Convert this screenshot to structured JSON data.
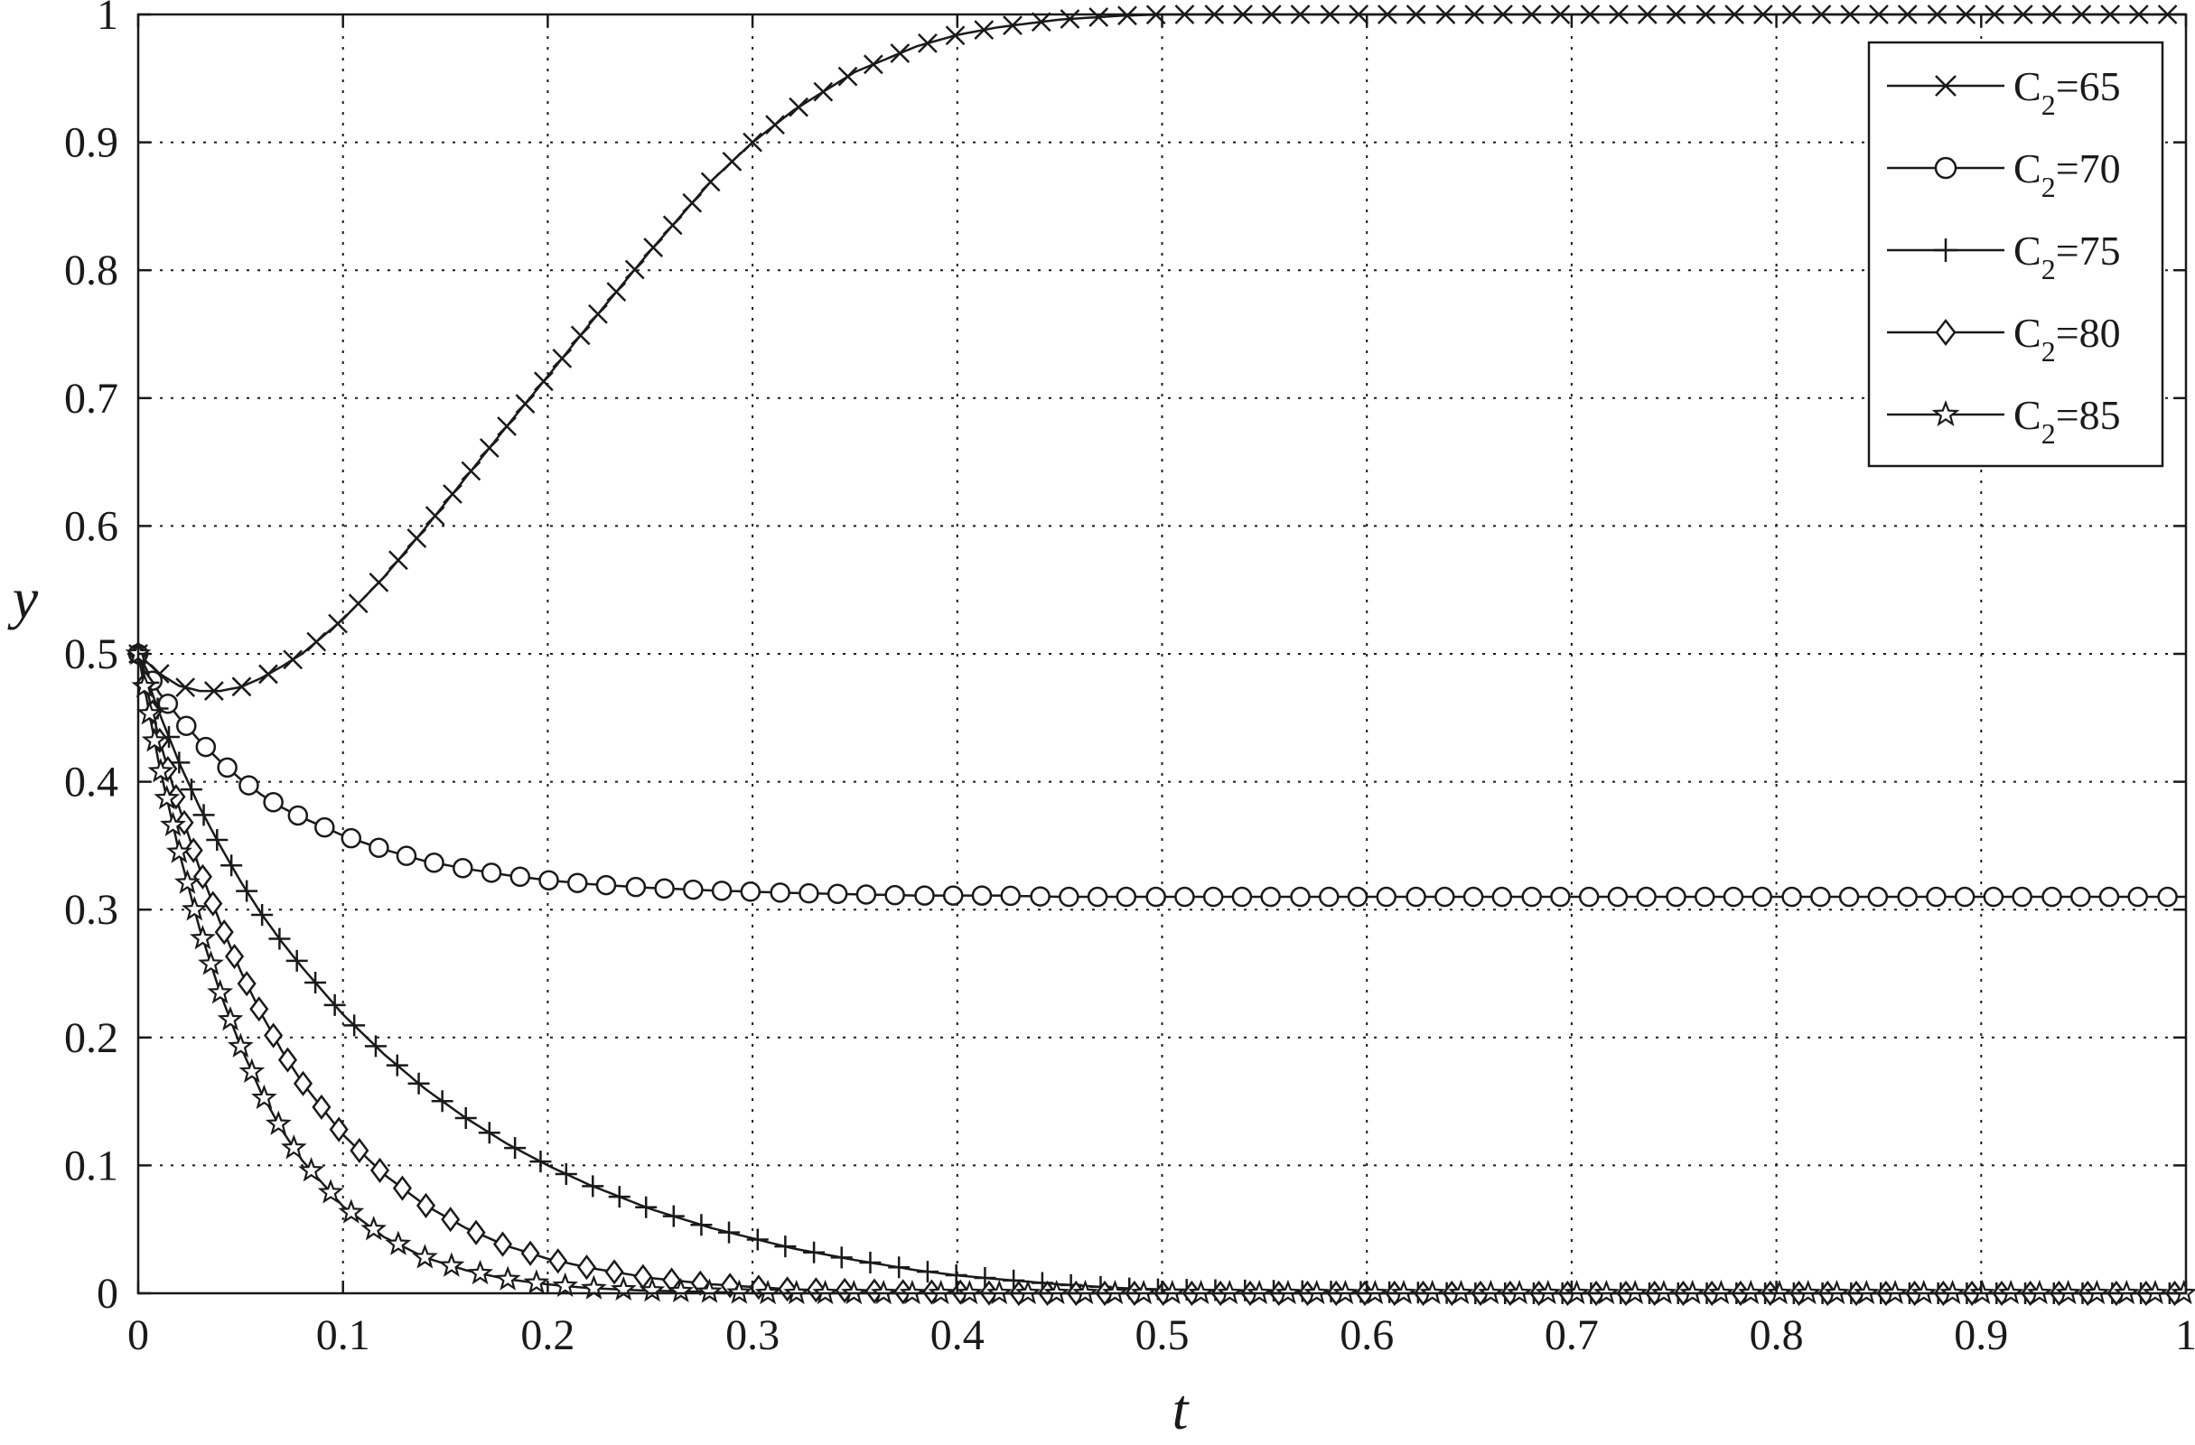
{
  "chart_data": {
    "type": "line",
    "title": "",
    "xlabel": "t",
    "ylabel": "y",
    "xlim": [
      0,
      1
    ],
    "ylim": [
      0,
      1
    ],
    "x_ticks": [
      0,
      0.1,
      0.2,
      0.3,
      0.4,
      0.5,
      0.6,
      0.7,
      0.8,
      0.9,
      1
    ],
    "x_tick_labels": [
      "0",
      "0.1",
      "0.2",
      "0.3",
      "0.4",
      "0.5",
      "0.6",
      "0.7",
      "0.8",
      "0.9",
      "1"
    ],
    "y_ticks": [
      0,
      0.1,
      0.2,
      0.3,
      0.4,
      0.5,
      0.6,
      0.7,
      0.8,
      0.9,
      1
    ],
    "y_tick_labels": [
      "0",
      "0.1",
      "0.2",
      "0.3",
      "0.4",
      "0.5",
      "0.6",
      "0.7",
      "0.8",
      "0.9",
      "1"
    ],
    "grid": "dotted",
    "legend_position": "top-right",
    "colors": {
      "line": "#1a1a1a",
      "grid": "#1a1a1a",
      "background": "#ffffff"
    },
    "x": [
      0,
      0.01,
      0.02,
      0.03,
      0.04,
      0.05,
      0.06,
      0.07,
      0.08,
      0.1,
      0.12,
      0.14,
      0.16,
      0.18,
      0.2,
      0.22,
      0.25,
      0.28,
      0.3,
      0.32,
      0.35,
      0.38,
      0.4,
      0.42,
      0.45,
      0.48,
      0.5,
      0.55,
      0.6,
      0.65,
      0.7,
      0.8,
      0.9,
      1
    ],
    "series": [
      {
        "name": "C2=65",
        "legend_main": "C",
        "legend_sub": "2",
        "legend_tail": "=65",
        "marker": "x",
        "values": [
          0.5,
          0.485,
          0.475,
          0.471,
          0.471,
          0.474,
          0.481,
          0.49,
          0.5,
          0.527,
          0.56,
          0.598,
          0.638,
          0.678,
          0.717,
          0.757,
          0.815,
          0.87,
          0.9,
          0.925,
          0.955,
          0.975,
          0.984,
          0.99,
          0.996,
          0.999,
          1,
          1,
          1,
          1,
          1,
          1,
          1,
          1
        ]
      },
      {
        "name": "C2=70",
        "legend_main": "C",
        "legend_sub": "2",
        "legend_tail": "=70",
        "marker": "circle",
        "values": [
          0.5,
          0.47,
          0.45,
          0.432,
          0.416,
          0.402,
          0.39,
          0.38,
          0.372,
          0.358,
          0.347,
          0.338,
          0.332,
          0.327,
          0.323,
          0.32,
          0.317,
          0.315,
          0.314,
          0.313,
          0.312,
          0.311,
          0.311,
          0.311,
          0.31,
          0.31,
          0.31,
          0.31,
          0.31,
          0.31,
          0.31,
          0.31,
          0.31,
          0.31
        ]
      },
      {
        "name": "C2=75",
        "legend_main": "C",
        "legend_sub": "2",
        "legend_tail": "=75",
        "marker": "plus",
        "values": [
          0.5,
          0.455,
          0.415,
          0.38,
          0.35,
          0.322,
          0.297,
          0.275,
          0.255,
          0.218,
          0.187,
          0.16,
          0.137,
          0.117,
          0.1,
          0.085,
          0.066,
          0.051,
          0.043,
          0.035,
          0.026,
          0.018,
          0.014,
          0.011,
          0.007,
          0.004,
          0.003,
          0.002,
          0.001,
          0,
          0,
          0,
          0,
          0
        ]
      },
      {
        "name": "C2=80",
        "legend_main": "C",
        "legend_sub": "2",
        "legend_tail": "=80",
        "marker": "diamond",
        "values": [
          0.5,
          0.435,
          0.38,
          0.332,
          0.29,
          0.252,
          0.219,
          0.19,
          0.165,
          0.124,
          0.093,
          0.069,
          0.051,
          0.037,
          0.027,
          0.02,
          0.012,
          0.007,
          0.005,
          0.003,
          0.002,
          0.001,
          0.001,
          0,
          0,
          0,
          0,
          0,
          0,
          0,
          0,
          0,
          0,
          0
        ]
      },
      {
        "name": "C2=85",
        "legend_main": "C",
        "legend_sub": "2",
        "legend_tail": "=85",
        "marker": "star",
        "values": [
          0.5,
          0.415,
          0.345,
          0.285,
          0.235,
          0.193,
          0.157,
          0.128,
          0.104,
          0.068,
          0.044,
          0.028,
          0.018,
          0.011,
          0.007,
          0.004,
          0.002,
          0.001,
          0,
          0,
          0,
          0,
          0,
          0,
          0,
          0,
          0,
          0,
          0,
          0,
          0,
          0,
          0,
          0
        ]
      }
    ]
  }
}
